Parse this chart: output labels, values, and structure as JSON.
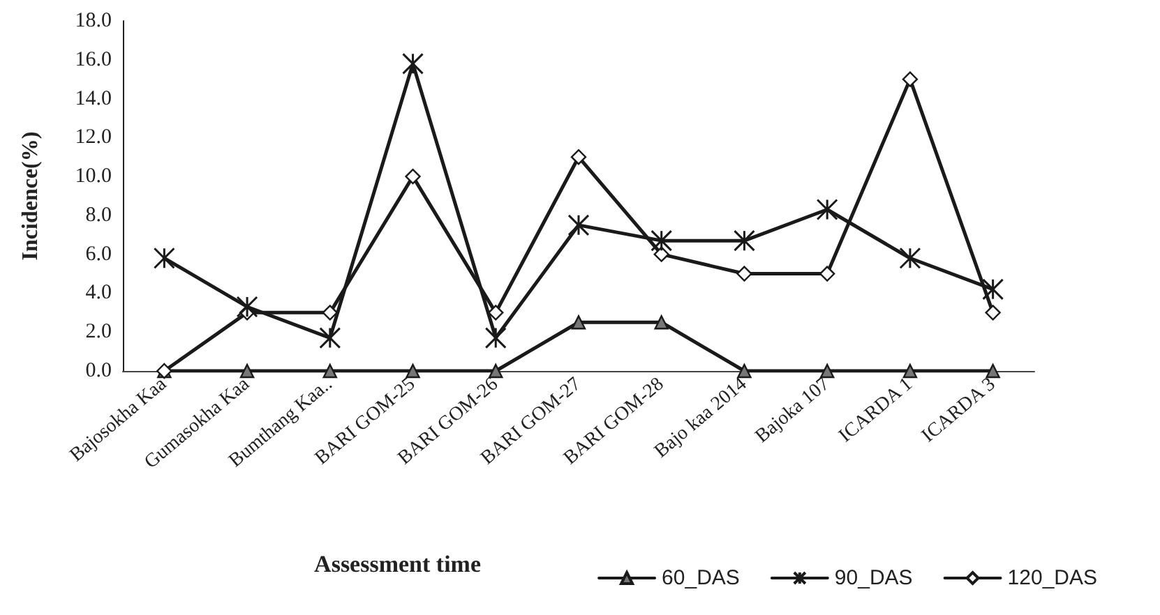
{
  "chart_data": {
    "type": "line",
    "xlabel": "Assessment time",
    "ylabel": "Incidence(%)",
    "categories": [
      "Bajosokha Kaa",
      "Gumasokha Kaa",
      "Bumthang Kaa..",
      "BARI GOM-25",
      "BARI GOM-26",
      "BARI GOM-27",
      "BARI GOM-28",
      "Bajo kaa 2014",
      "Bajoka 107",
      "ICARDA 1",
      "ICARDA 3"
    ],
    "series": [
      {
        "name": "60_DAS",
        "color": "#1a1a1a",
        "marker": "triangle",
        "values": [
          0,
          0,
          0,
          0,
          0,
          2.5,
          2.5,
          0,
          0,
          0,
          0
        ]
      },
      {
        "name": "90_DAS",
        "color": "#1a1a1a",
        "marker": "cross",
        "values": [
          5.8,
          3.3,
          1.7,
          15.8,
          1.7,
          7.5,
          6.7,
          6.7,
          8.3,
          5.8,
          4.2
        ]
      },
      {
        "name": "120_DAS",
        "color": "#1a1a1a",
        "marker": "diamond",
        "values": [
          0,
          3,
          3,
          10,
          3,
          11,
          6,
          5,
          5,
          15,
          3
        ]
      }
    ],
    "ylim": [
      0,
      18
    ],
    "yticks": [
      {
        "value": 0,
        "label": "0.0"
      },
      {
        "value": 2,
        "label": "2.0"
      },
      {
        "value": 4,
        "label": "4.0"
      },
      {
        "value": 6,
        "label": "6.0"
      },
      {
        "value": 8,
        "label": "8.0"
      },
      {
        "value": 10,
        "label": "10.0"
      },
      {
        "value": 12,
        "label": "12.0"
      },
      {
        "value": 14,
        "label": "14.0"
      },
      {
        "value": 16,
        "label": "16.0"
      },
      {
        "value": 18,
        "label": "18.0"
      }
    ],
    "grid": false,
    "legend": "bottom right",
    "line_style": "solid"
  }
}
